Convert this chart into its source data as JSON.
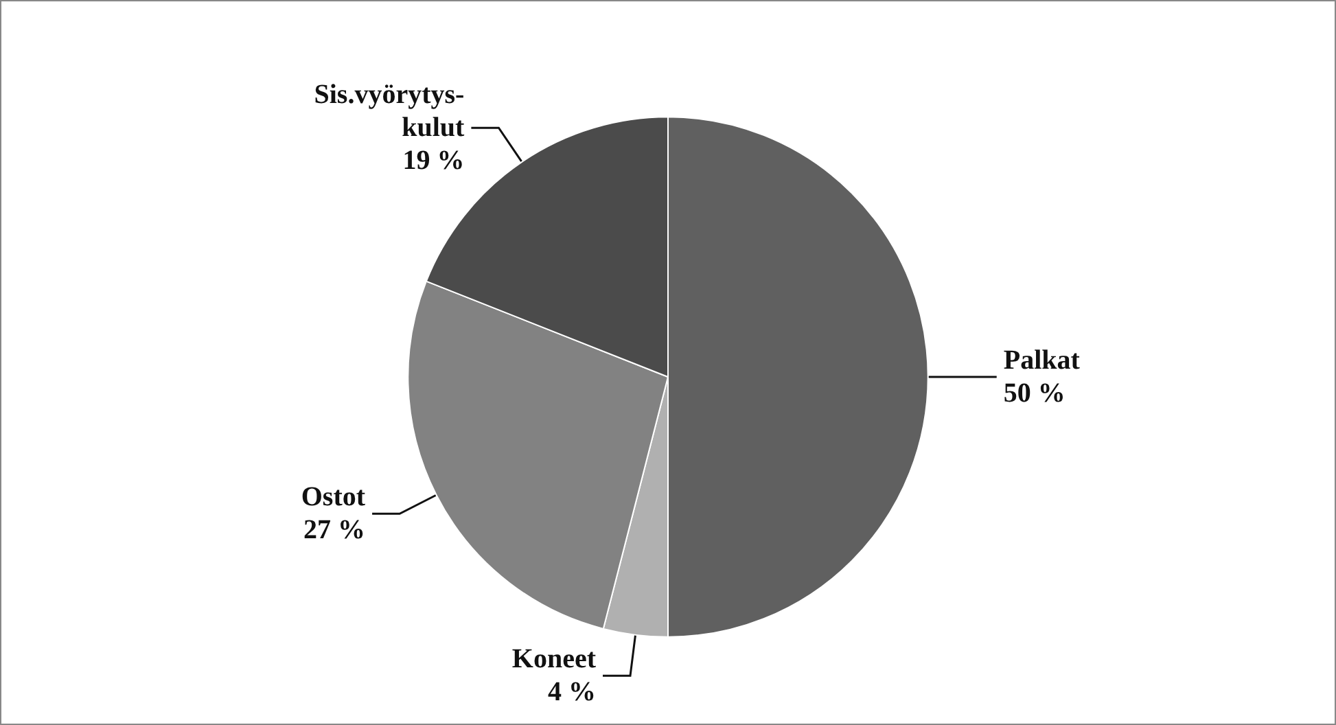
{
  "chart_data": {
    "type": "pie",
    "categories": [
      "Palkat",
      "Koneet",
      "Ostot",
      "Sis.vyörytys-kulut"
    ],
    "values": [
      50,
      4,
      27,
      19
    ],
    "value_labels": [
      "50 %",
      "4 %",
      "27 %",
      "19 %"
    ],
    "colors": [
      "#606060",
      "#b0b0b0",
      "#828282",
      "#4b4b4b"
    ],
    "legend": false
  }
}
